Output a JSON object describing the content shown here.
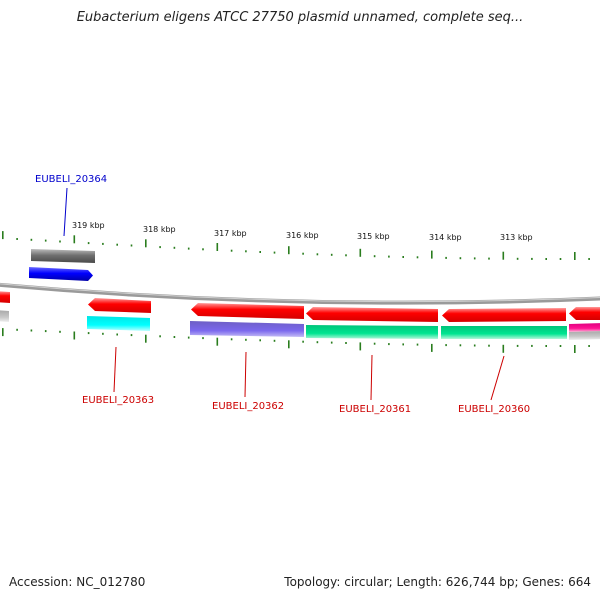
{
  "title": "Eubacterium eligens ATCC 27750 plasmid unnamed, complete seq...",
  "footer": {
    "accession": "Accession: NC_012780",
    "summary": "Topology: circular; Length: 626,744 bp; Genes: 664"
  },
  "ticks": [
    "319 kbp",
    "318 kbp",
    "317 kbp",
    "316 kbp",
    "315 kbp",
    "314 kbp",
    "313 kbp"
  ],
  "gene_labels": {
    "g20364": "EUBELI_20364",
    "g20363": "EUBELI_20363",
    "g20362": "EUBELI_20362",
    "g20361": "EUBELI_20361",
    "g20360": "EUBELI_20360"
  },
  "colors": {
    "label_blue": "#0000cc",
    "label_red": "#cc0000",
    "tick_green": "#2a7d1e",
    "cds_red": "#ff0000",
    "backbone": "#8a8a8a"
  }
}
